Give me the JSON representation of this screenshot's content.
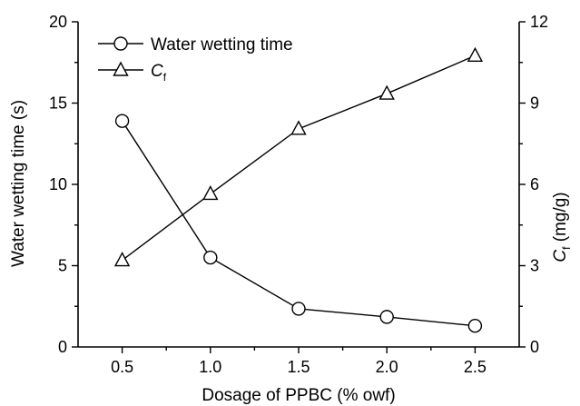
{
  "chart_data": {
    "type": "line",
    "x": [
      0.5,
      1.0,
      1.5,
      2.0,
      2.5
    ],
    "xlabel": "Dosage of PPBC (% owf)",
    "xlim": [
      0.25,
      2.75
    ],
    "xticks": [
      "0.5",
      "1.0",
      "1.5",
      "2.0",
      "2.5"
    ],
    "ylabel_left": "Water wetting time (s)",
    "ylim_left": [
      0,
      20
    ],
    "yticks_left": [
      "0",
      "5",
      "10",
      "15",
      "20"
    ],
    "ylabel_right_main": "C",
    "ylabel_right_sub": "f",
    "ylabel_right_unit": " (mg/g)",
    "ylim_right": [
      0,
      12
    ],
    "yticks_right": [
      "0",
      "3",
      "6",
      "9",
      "12"
    ],
    "legend_position": "top-left",
    "grid": false,
    "series": [
      {
        "name": "Water wetting time",
        "axis": "left",
        "marker": "circle",
        "values": [
          13.9,
          5.5,
          2.35,
          1.85,
          1.3
        ]
      },
      {
        "name_main": "C",
        "name_sub": "f",
        "axis": "right",
        "marker": "triangle",
        "values": [
          3.2,
          5.65,
          8.05,
          9.35,
          10.75
        ]
      }
    ]
  }
}
